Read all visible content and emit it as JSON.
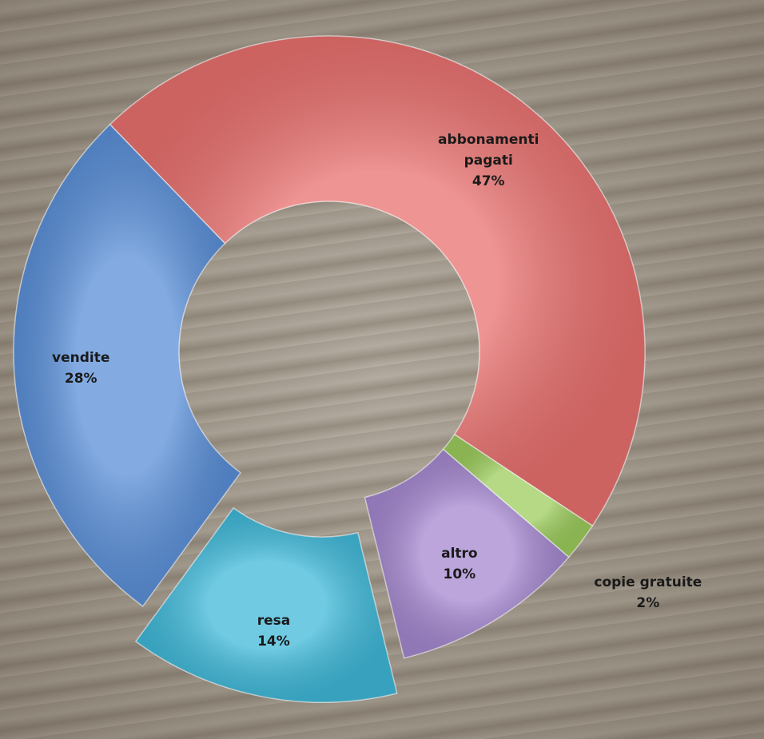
{
  "chart_data": {
    "type": "donut",
    "categories": [
      "abbonamenti pagati",
      "copie gratuite",
      "altro",
      "resa",
      "vendite"
    ],
    "values": [
      47,
      2,
      10,
      14,
      28
    ],
    "value_labels": [
      "47%",
      "2%",
      "10%",
      "14%",
      "28%"
    ],
    "colors": [
      "#e8706e",
      "#9ccc5c",
      "#a487cf",
      "#3fb8d8",
      "#5a8fd8"
    ],
    "exploded": [
      false,
      false,
      false,
      true,
      false
    ]
  }
}
